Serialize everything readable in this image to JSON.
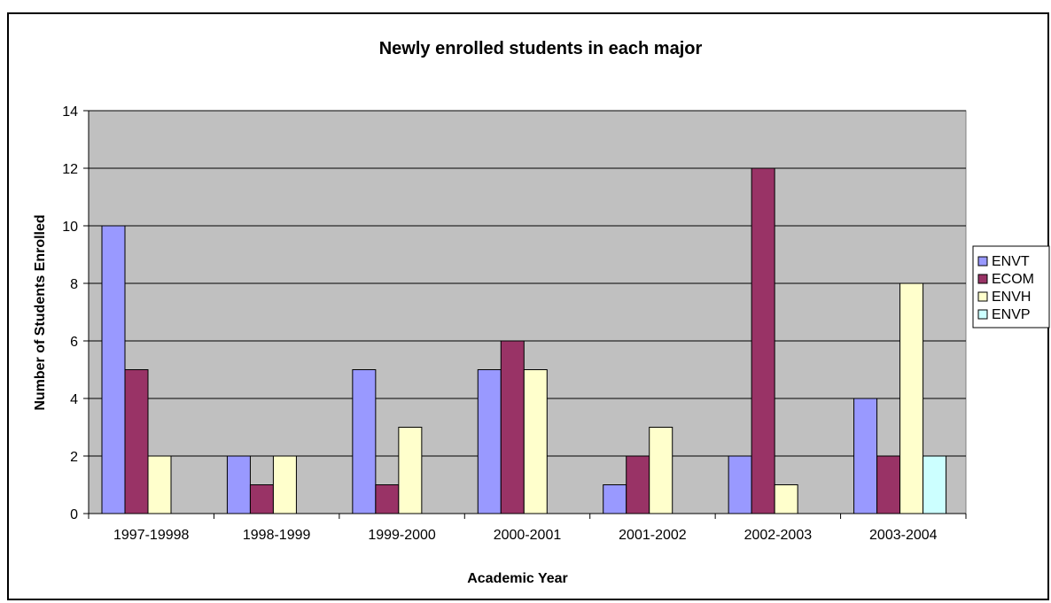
{
  "chart_data": {
    "type": "bar",
    "title": "Newly enrolled students in each major",
    "xlabel": "Academic Year",
    "ylabel": "Number of Students Enrolled",
    "ylim": [
      0,
      14
    ],
    "yticks": [
      "0",
      "2",
      "4",
      "6",
      "8",
      "10",
      "12",
      "14"
    ],
    "grid": true,
    "legend_position": "right",
    "categories": [
      "1997-19998",
      "1998-1999",
      "1999-2000",
      "2000-2001",
      "2001-2002",
      "2002-2003",
      "2003-2004"
    ],
    "series": [
      {
        "name": "ENVT",
        "color": "#9999ff",
        "values": [
          10,
          2,
          5,
          5,
          1,
          2,
          4
        ]
      },
      {
        "name": "ECOM",
        "color": "#993366",
        "values": [
          5,
          1,
          1,
          6,
          2,
          12,
          2
        ]
      },
      {
        "name": "ENVH",
        "color": "#ffffcc",
        "values": [
          2,
          2,
          3,
          5,
          3,
          1,
          8
        ]
      },
      {
        "name": "ENVP",
        "color": "#ccffff",
        "values": [
          0,
          0,
          0,
          0,
          0,
          0,
          2
        ]
      }
    ],
    "plot_background": "#c0c0c0"
  }
}
